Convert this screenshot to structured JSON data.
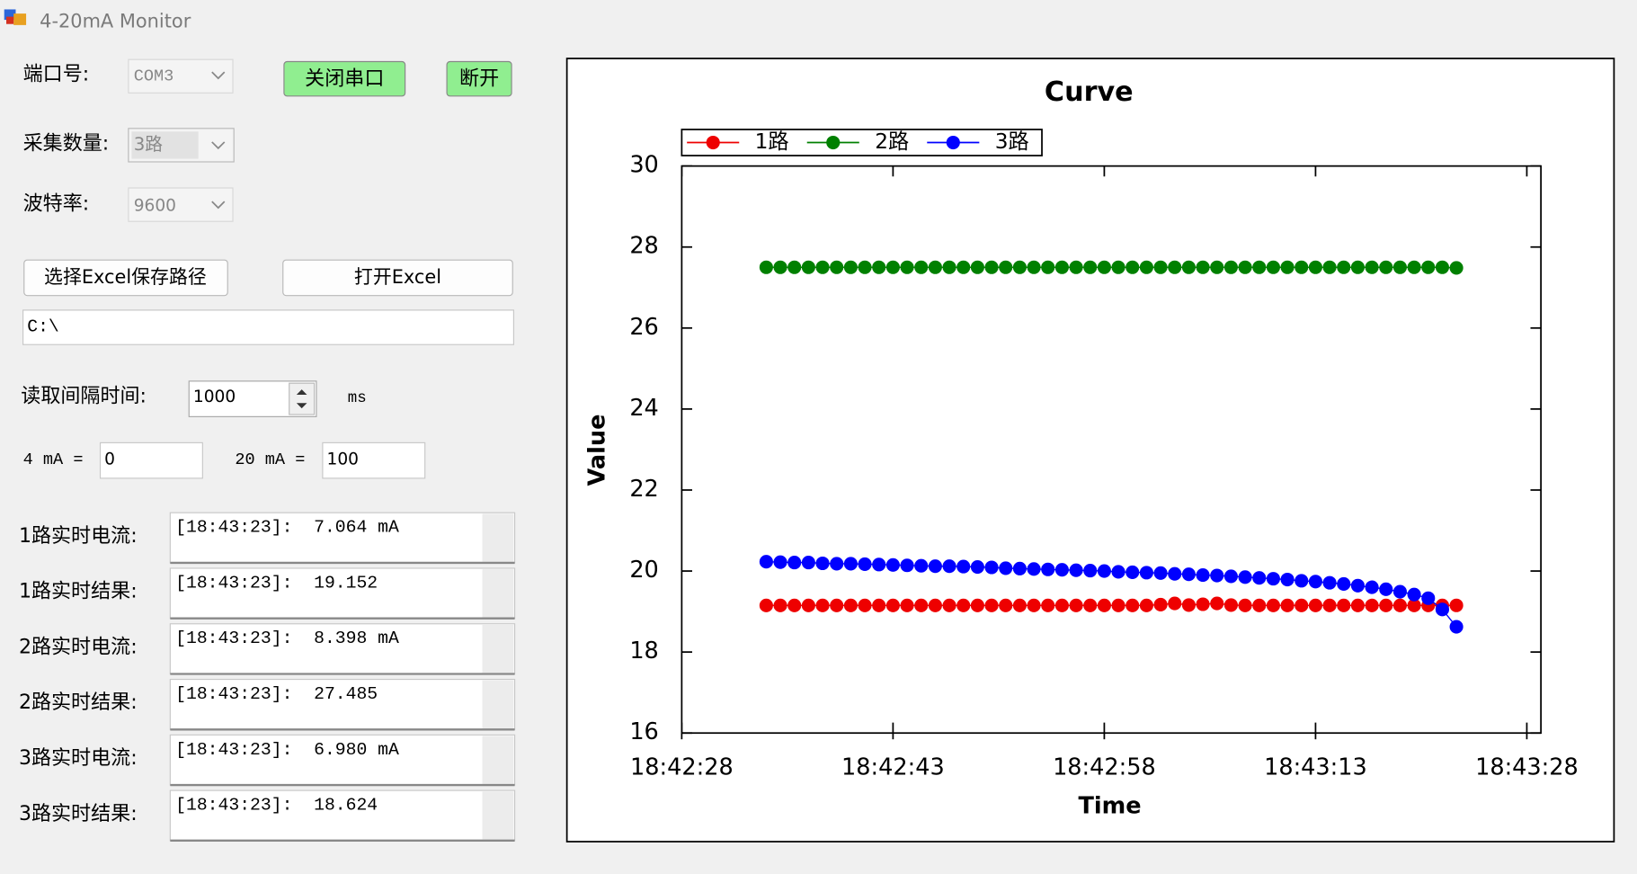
{
  "window": {
    "title": "4-20mA Monitor"
  },
  "form": {
    "port": {
      "label": "端口号:",
      "value": "COM3"
    },
    "close_port": "关闭串口",
    "disconnect": "断开",
    "channels": {
      "label": "采集数量:",
      "value": "3路"
    },
    "baud": {
      "label": "波特率:",
      "value": "9600"
    },
    "choose_path": "选择Excel保存路径",
    "open_excel": "打开Excel",
    "path": "C:\\",
    "interval": {
      "label": "读取间隔时间:",
      "value": "1000",
      "unit": "ms"
    },
    "min": {
      "label": "4 mA =",
      "value": "0"
    },
    "max": {
      "label": "20 mA =",
      "value": "100"
    },
    "readouts": [
      {
        "label": "1路实时电流:",
        "text": "[18:43:23]:  7.064 mA"
      },
      {
        "label": "1路实时结果:",
        "text": "[18:43:23]:  19.152"
      },
      {
        "label": "2路实时电流:",
        "text": "[18:43:23]:  8.398 mA"
      },
      {
        "label": "2路实时结果:",
        "text": "[18:43:23]:  27.485"
      },
      {
        "label": "3路实时电流:",
        "text": "[18:43:23]:  6.980 mA"
      },
      {
        "label": "3路实时结果:",
        "text": "[18:43:23]:  18.624"
      }
    ]
  },
  "chart_data": {
    "type": "line",
    "title": "Curve",
    "x_label": "Time",
    "y_label": "Value",
    "x": [
      "18:42:34",
      "18:42:35",
      "18:42:36",
      "18:42:37",
      "18:42:38",
      "18:42:39",
      "18:42:40",
      "18:42:41",
      "18:42:42",
      "18:42:43",
      "18:42:44",
      "18:42:45",
      "18:42:46",
      "18:42:47",
      "18:42:48",
      "18:42:49",
      "18:42:50",
      "18:42:51",
      "18:42:52",
      "18:42:53",
      "18:42:54",
      "18:42:55",
      "18:42:56",
      "18:42:57",
      "18:42:58",
      "18:42:59",
      "18:43:00",
      "18:43:01",
      "18:43:02",
      "18:43:03",
      "18:43:04",
      "18:43:05",
      "18:43:06",
      "18:43:07",
      "18:43:08",
      "18:43:09",
      "18:43:10",
      "18:43:11",
      "18:43:12",
      "18:43:13",
      "18:43:14",
      "18:43:15",
      "18:43:16",
      "18:43:17",
      "18:43:18",
      "18:43:19",
      "18:43:20",
      "18:43:21",
      "18:43:22",
      "18:43:23"
    ],
    "series": [
      {
        "name": "1路",
        "color": "#ee0000",
        "values": [
          19.15,
          19.15,
          19.15,
          19.15,
          19.15,
          19.15,
          19.15,
          19.15,
          19.15,
          19.15,
          19.15,
          19.15,
          19.15,
          19.15,
          19.15,
          19.15,
          19.15,
          19.15,
          19.15,
          19.15,
          19.15,
          19.15,
          19.15,
          19.15,
          19.15,
          19.15,
          19.15,
          19.15,
          19.17,
          19.2,
          19.16,
          19.18,
          19.2,
          19.16,
          19.15,
          19.15,
          19.15,
          19.15,
          19.15,
          19.15,
          19.15,
          19.15,
          19.15,
          19.15,
          19.15,
          19.15,
          19.15,
          19.15,
          19.15,
          19.152
        ]
      },
      {
        "name": "2路",
        "color": "#008000",
        "values": [
          27.5,
          27.5,
          27.5,
          27.5,
          27.5,
          27.5,
          27.5,
          27.5,
          27.5,
          27.5,
          27.5,
          27.5,
          27.5,
          27.5,
          27.5,
          27.5,
          27.5,
          27.5,
          27.5,
          27.5,
          27.5,
          27.5,
          27.5,
          27.5,
          27.5,
          27.5,
          27.5,
          27.5,
          27.5,
          27.5,
          27.5,
          27.5,
          27.5,
          27.5,
          27.5,
          27.5,
          27.5,
          27.5,
          27.5,
          27.5,
          27.5,
          27.5,
          27.5,
          27.5,
          27.5,
          27.5,
          27.5,
          27.5,
          27.5,
          27.485
        ]
      },
      {
        "name": "3路",
        "color": "#0000ff",
        "values": [
          20.23,
          20.22,
          20.21,
          20.21,
          20.19,
          20.18,
          20.18,
          20.17,
          20.16,
          20.15,
          20.14,
          20.13,
          20.12,
          20.12,
          20.11,
          20.1,
          20.09,
          20.07,
          20.06,
          20.05,
          20.04,
          20.03,
          20.02,
          20.01,
          20.0,
          19.98,
          19.97,
          19.96,
          19.95,
          19.93,
          19.92,
          19.9,
          19.89,
          19.87,
          19.85,
          19.83,
          19.81,
          19.79,
          19.76,
          19.74,
          19.71,
          19.68,
          19.64,
          19.6,
          19.55,
          19.49,
          19.42,
          19.33,
          19.05,
          18.624
        ]
      }
    ],
    "xlim": [
      "18:42:28",
      "18:43:29"
    ],
    "xticks": [
      "18:42:28",
      "18:42:43",
      "18:42:58",
      "18:43:13",
      "18:43:28"
    ],
    "ylim": [
      16,
      30
    ],
    "yticks": [
      16,
      18,
      20,
      22,
      24,
      26,
      28,
      30
    ],
    "legend": "top-left"
  }
}
